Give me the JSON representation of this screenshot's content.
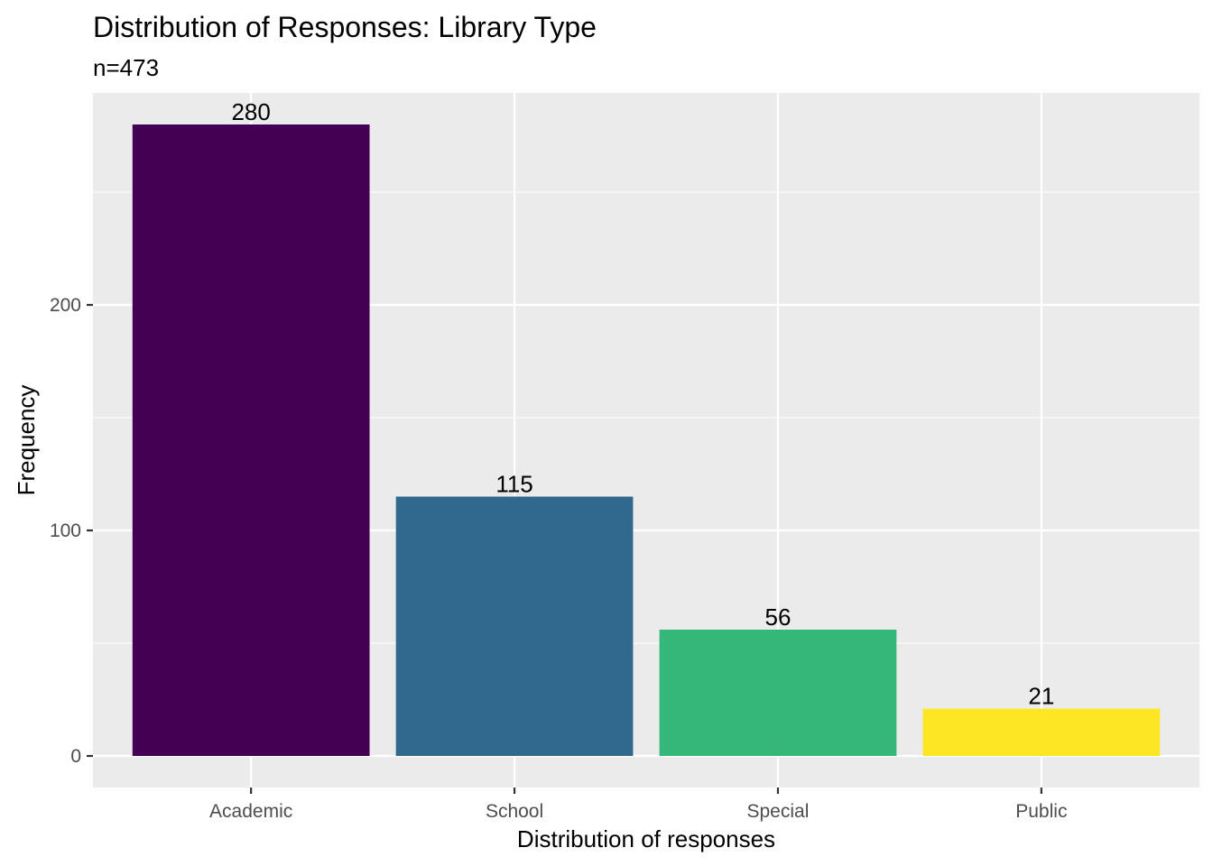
{
  "chart_data": {
    "type": "bar",
    "title": "Distribution of Responses: Library Type",
    "subtitle": "n=473",
    "xlabel": "Distribution of responses",
    "ylabel": "Frequency",
    "categories": [
      "Academic",
      "School",
      "Special",
      "Public"
    ],
    "values": [
      280,
      115,
      56,
      21
    ],
    "data_labels": [
      "280",
      "115",
      "56",
      "21"
    ],
    "colors": [
      "#440154",
      "#31688E",
      "#35B779",
      "#FDE725"
    ],
    "ylim": [
      -14,
      294
    ],
    "y_ticks": [
      0,
      100,
      200
    ],
    "y_tick_labels": [
      "0",
      "100",
      "200"
    ],
    "grid": true,
    "panel_background": "#EBEBEB",
    "grid_color": "#FFFFFF",
    "legend": "none"
  }
}
